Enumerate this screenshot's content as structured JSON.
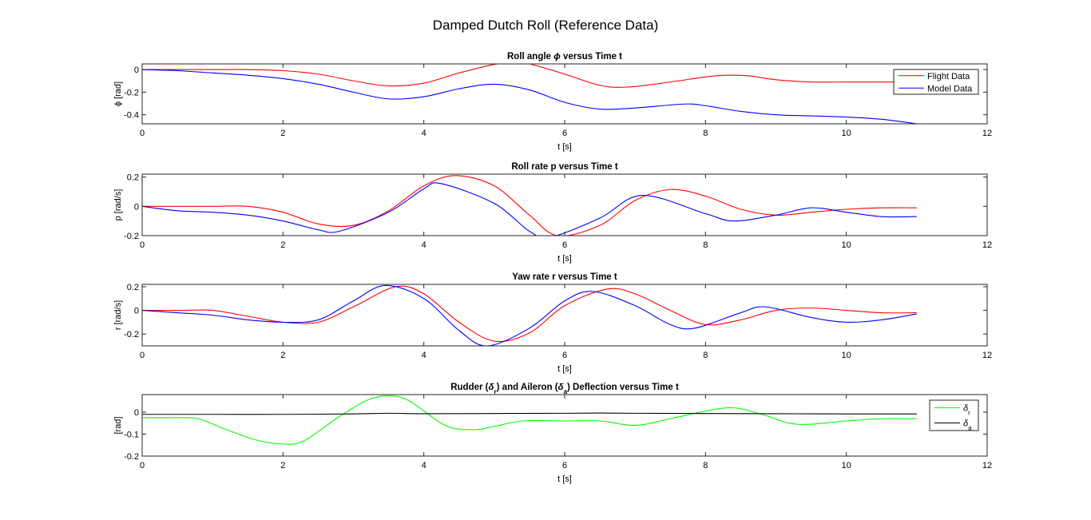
{
  "figure": {
    "title": "Damped Dutch Roll (Reference Data)"
  },
  "colors": {
    "flight": "#ff0000",
    "model": "#0000ff",
    "rudder": "#00ff00",
    "aileron": "#000000"
  },
  "chart_data": [
    {
      "type": "line",
      "title": "Roll angle ϕ versus Time t",
      "title_parts": [
        {
          "t": "Roll angle "
        },
        {
          "t": "ϕ",
          "i": true
        },
        {
          "t": " versus Time t"
        }
      ],
      "xlabel": "t [s]",
      "ylabel": "ϕ [rad]",
      "xlim": [
        0,
        12
      ],
      "ylim": [
        -0.48,
        0.05
      ],
      "xticks": [
        0,
        2,
        4,
        6,
        8,
        10,
        12
      ],
      "yticks": [
        0,
        -0.2,
        -0.4
      ],
      "ytick_labels": [
        "0",
        "-0.2",
        "-0.4"
      ],
      "legend": "top-right",
      "series": [
        {
          "name": "Flight Data",
          "color": "#ff0000",
          "x": [
            0,
            0.5,
            1,
            1.5,
            2,
            2.5,
            3,
            3.5,
            4,
            4.5,
            5,
            5.3,
            5.5,
            6,
            6.5,
            6.9,
            7.5,
            8,
            8.3,
            8.6,
            9,
            9.5,
            10,
            10.5,
            11
          ],
          "y": [
            0,
            0,
            0,
            0,
            -0.01,
            -0.04,
            -0.1,
            -0.145,
            -0.12,
            -0.03,
            0.045,
            0.06,
            0.05,
            -0.04,
            -0.14,
            -0.155,
            -0.11,
            -0.065,
            -0.05,
            -0.055,
            -0.09,
            -0.11,
            -0.11,
            -0.11,
            -0.11
          ]
        },
        {
          "name": "Model Data",
          "color": "#0000ff",
          "x": [
            0,
            0.5,
            1,
            1.5,
            2,
            2.5,
            3,
            3.5,
            4,
            4.5,
            5,
            5.5,
            6,
            6.5,
            7,
            7.7,
            8,
            8.5,
            9,
            9.5,
            10,
            10.5,
            11
          ],
          "y": [
            0,
            -0.01,
            -0.03,
            -0.05,
            -0.08,
            -0.13,
            -0.2,
            -0.26,
            -0.24,
            -0.17,
            -0.13,
            -0.18,
            -0.29,
            -0.35,
            -0.34,
            -0.305,
            -0.32,
            -0.37,
            -0.4,
            -0.41,
            -0.42,
            -0.44,
            -0.48
          ]
        }
      ]
    },
    {
      "type": "line",
      "title": "Roll rate p versus Time t",
      "title_parts": [
        {
          "t": "Roll rate p versus Time t"
        }
      ],
      "xlabel": "t [s]",
      "ylabel": "p [rad/s]",
      "xlim": [
        0,
        12
      ],
      "ylim": [
        -0.2,
        0.22
      ],
      "xticks": [
        0,
        2,
        4,
        6,
        8,
        10,
        12
      ],
      "yticks": [
        0.2,
        0,
        -0.2
      ],
      "ytick_labels": [
        "0.2",
        "0",
        "-0.2"
      ],
      "series": [
        {
          "name": "Flight Data",
          "color": "#ff0000",
          "x": [
            0,
            0.5,
            1,
            1.5,
            2,
            2.5,
            3,
            3.5,
            4,
            4.45,
            5,
            5.5,
            5.9,
            6.5,
            7,
            7.5,
            8,
            8.5,
            9,
            9.5,
            10,
            10.5,
            11
          ],
          "y": [
            0,
            0,
            0,
            0,
            -0.04,
            -0.12,
            -0.13,
            -0.03,
            0.14,
            0.21,
            0.14,
            -0.06,
            -0.2,
            -0.13,
            0.04,
            0.115,
            0.07,
            -0.02,
            -0.06,
            -0.04,
            -0.02,
            -0.01,
            -0.01
          ]
        },
        {
          "name": "Model Data",
          "color": "#0000ff",
          "x": [
            0,
            0.5,
            1,
            1.5,
            2,
            2.5,
            2.8,
            3.5,
            4,
            4.25,
            5,
            5.5,
            5.8,
            6.5,
            7.1,
            8,
            8.4,
            9,
            9.5,
            10,
            10.5,
            11
          ],
          "y": [
            0,
            -0.03,
            -0.04,
            -0.06,
            -0.1,
            -0.16,
            -0.17,
            -0.04,
            0.12,
            0.155,
            0.02,
            -0.17,
            -0.21,
            -0.08,
            0.075,
            -0.05,
            -0.1,
            -0.06,
            -0.01,
            -0.04,
            -0.07,
            -0.07
          ]
        }
      ]
    },
    {
      "type": "line",
      "title": "Yaw rate r versus Time t",
      "title_parts": [
        {
          "t": "Yaw rate r versus Time t"
        }
      ],
      "xlabel": "t [s]",
      "ylabel": "r [rad/s]",
      "xlim": [
        0,
        12
      ],
      "ylim": [
        -0.3,
        0.22
      ],
      "xticks": [
        0,
        2,
        4,
        6,
        8,
        10,
        12
      ],
      "yticks": [
        0.2,
        0,
        -0.2
      ],
      "ytick_labels": [
        "0.2",
        "0",
        "-0.2"
      ],
      "series": [
        {
          "name": "Flight Data",
          "color": "#ff0000",
          "x": [
            0,
            0.5,
            1,
            1.5,
            2,
            2.5,
            3,
            3.6,
            4,
            4.5,
            5,
            5.5,
            6,
            6.6,
            7,
            7.5,
            8,
            8.5,
            9,
            9.5,
            10,
            10.5,
            11
          ],
          "y": [
            0,
            0,
            0,
            -0.05,
            -0.1,
            -0.1,
            0.03,
            0.2,
            0.14,
            -0.1,
            -0.26,
            -0.19,
            0.04,
            0.18,
            0.14,
            0,
            -0.12,
            -0.08,
            0,
            0.02,
            0,
            -0.02,
            -0.02
          ]
        },
        {
          "name": "Model Data",
          "color": "#0000ff",
          "x": [
            0,
            0.5,
            1,
            1.5,
            2,
            2.5,
            3,
            3.45,
            4,
            4.5,
            4.9,
            5.5,
            6,
            6.4,
            7,
            7.5,
            7.85,
            8.5,
            8.85,
            9.5,
            10,
            10.5,
            11
          ],
          "y": [
            0,
            -0.02,
            -0.04,
            -0.08,
            -0.1,
            -0.08,
            0.08,
            0.21,
            0.1,
            -0.17,
            -0.3,
            -0.15,
            0.08,
            0.16,
            0.04,
            -0.12,
            -0.15,
            -0.02,
            0.03,
            -0.06,
            -0.1,
            -0.08,
            -0.03
          ]
        }
      ]
    },
    {
      "type": "line",
      "title": "Rudder (δr) and Aileron (δa) Deflection versus Time t",
      "title_parts": [
        {
          "t": "Rudder ("
        },
        {
          "t": "δ",
          "i": true
        },
        {
          "t": "r",
          "sub": true
        },
        {
          "t": ") and Aileron ("
        },
        {
          "t": "δ",
          "i": true
        },
        {
          "t": "a",
          "sub": true
        },
        {
          "t": ") Deflection versus Time t"
        }
      ],
      "xlabel": "t [s]",
      "ylabel": "[rad]",
      "xlim": [
        0,
        12
      ],
      "ylim": [
        -0.2,
        0.08
      ],
      "xticks": [
        0,
        2,
        4,
        6,
        8,
        10,
        12
      ],
      "yticks": [
        0,
        -0.1,
        -0.2
      ],
      "ytick_labels": [
        "0",
        "-0.1",
        "-0.2"
      ],
      "legend": "top-right",
      "series": [
        {
          "name": "δr",
          "legend_parts": [
            {
              "t": "δ",
              "i": true
            },
            {
              "t": "r",
              "sub": true
            }
          ],
          "color": "#00ff00",
          "x": [
            0,
            0.5,
            0.8,
            1.2,
            1.6,
            2,
            2.3,
            2.8,
            3.2,
            3.5,
            3.8,
            4.3,
            4.7,
            5,
            5.4,
            6,
            6.5,
            7,
            7.5,
            8,
            8.4,
            8.8,
            9.3,
            10,
            10.5,
            11
          ],
          "y": [
            -0.025,
            -0.025,
            -0.03,
            -0.08,
            -0.125,
            -0.145,
            -0.13,
            -0.02,
            0.055,
            0.075,
            0.05,
            -0.06,
            -0.08,
            -0.065,
            -0.04,
            -0.04,
            -0.04,
            -0.06,
            -0.03,
            0.005,
            0.02,
            -0.01,
            -0.055,
            -0.04,
            -0.03,
            -0.03
          ]
        },
        {
          "name": "δa",
          "legend_parts": [
            {
              "t": "δ",
              "i": true
            },
            {
              "t": "a",
              "sub": true
            }
          ],
          "color": "#000000",
          "x": [
            0,
            1,
            2,
            3,
            3.5,
            4,
            5,
            6,
            6.5,
            7,
            8,
            9,
            10,
            11
          ],
          "y": [
            -0.01,
            -0.01,
            -0.01,
            -0.008,
            -0.005,
            -0.007,
            -0.006,
            -0.005,
            -0.004,
            -0.005,
            -0.006,
            -0.007,
            -0.008,
            -0.008
          ]
        }
      ]
    }
  ]
}
